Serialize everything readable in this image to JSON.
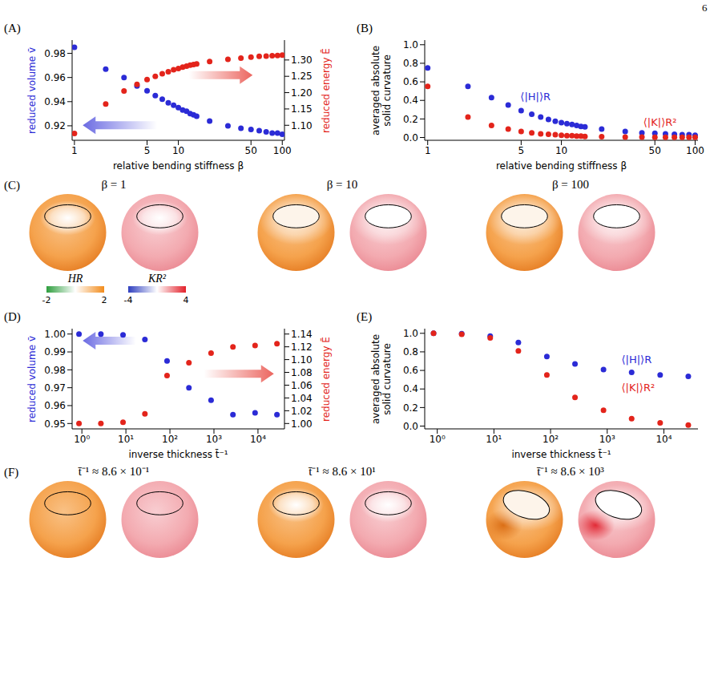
{
  "page_number": "6",
  "chart_data": [
    {
      "panel": "(A)",
      "type": "scatter",
      "marker": "circle",
      "grid": false,
      "log": "x",
      "x_label": "relative bending stiffness β",
      "y_label": "reduced volume v̄",
      "y2_label": "reduced energy Ē",
      "x": [
        1,
        2,
        3,
        4,
        5,
        6,
        7,
        8,
        9,
        10,
        11,
        12,
        13,
        14,
        15,
        20,
        30,
        40,
        50,
        60,
        70,
        80,
        90,
        100
      ],
      "xlim": [
        0.95,
        105
      ],
      "xticks": [
        1,
        5,
        10,
        50,
        100
      ],
      "ylim": [
        0.908,
        0.991
      ],
      "yticks": [
        0.92,
        0.94,
        0.96,
        0.98
      ],
      "y2lim": [
        1.054,
        1.361
      ],
      "y2ticks": [
        {
          "value": 1.1,
          "label": "1.10"
        },
        1.15,
        {
          "value": 1.2,
          "label": "1.20"
        },
        1.25,
        {
          "value": 1.3,
          "label": "1.30"
        }
      ],
      "series": [
        {
          "color": "#2b2bd6",
          "values": [
            0.985,
            0.967,
            0.96,
            0.953,
            0.949,
            0.945,
            0.942,
            0.939,
            0.937,
            0.935,
            0.933,
            0.932,
            0.93,
            0.929,
            0.928,
            0.924,
            0.92,
            0.918,
            0.917,
            0.916,
            0.915,
            0.914,
            0.914,
            0.913
          ]
        },
        {
          "color": "#e3241b",
          "axis": "y2",
          "values": [
            1.075,
            1.165,
            1.205,
            1.225,
            1.24,
            1.25,
            1.258,
            1.264,
            1.27,
            1.274,
            1.278,
            1.281,
            1.284,
            1.286,
            1.288,
            1.295,
            1.302,
            1.306,
            1.309,
            1.311,
            1.312,
            1.313,
            1.314,
            1.315
          ]
        }
      ]
    },
    {
      "panel": "(B)",
      "type": "scatter",
      "marker": "circle",
      "grid": false,
      "log": "x",
      "x_label": "relative bending stiffness β",
      "y_label": "averaged absolute solid curvature",
      "x": [
        1,
        2,
        3,
        4,
        5,
        6,
        7,
        8,
        9,
        10,
        11,
        12,
        13,
        14,
        15,
        20,
        30,
        40,
        50,
        60,
        70,
        80,
        90,
        100
      ],
      "xlim": [
        0.95,
        105
      ],
      "xticks": [
        1,
        5,
        10,
        50,
        100
      ],
      "ylim": [
        -0.03,
        1.05
      ],
      "yticks": [
        {
          "value": 0,
          "label": "0.0"
        },
        0.2,
        0.4,
        0.6,
        0.8,
        {
          "value": 1,
          "label": "1.0"
        }
      ],
      "series": [
        {
          "name": "⟨|H|⟩R",
          "color": "#2b2bd6",
          "values": [
            0.75,
            0.55,
            0.43,
            0.35,
            0.29,
            0.25,
            0.22,
            0.195,
            0.175,
            0.16,
            0.15,
            0.14,
            0.13,
            0.12,
            0.115,
            0.09,
            0.065,
            0.05,
            0.045,
            0.04,
            0.035,
            0.03,
            0.03,
            0.025
          ]
        },
        {
          "name": "⟨|K|⟩R²",
          "color": "#e3241b",
          "values": [
            0.55,
            0.22,
            0.13,
            0.09,
            0.065,
            0.05,
            0.04,
            0.035,
            0.03,
            0.025,
            0.02,
            0.02,
            0.015,
            0.015,
            0.012,
            0.008,
            0.005,
            0.004,
            0.003,
            0.003,
            0.002,
            0.002,
            0.002,
            0.002
          ]
        }
      ]
    },
    {
      "panel": "(D)",
      "type": "scatter",
      "marker": "circle",
      "grid": false,
      "log": "x",
      "x_label": "inverse thickness t̄⁻¹",
      "y_label": "reduced volume v̄",
      "y2_label": "reduced energy Ē",
      "x": [
        0.86,
        2.7,
        8.6,
        27,
        86,
        270,
        860,
        2700,
        8600,
        27000
      ],
      "xlim": [
        0.6,
        40000
      ],
      "xticks": [
        {
          "value": 1,
          "label": "10⁰"
        },
        {
          "value": 10,
          "label": "10¹"
        },
        {
          "value": 100,
          "label": "10²"
        },
        {
          "value": 1000,
          "label": "10³"
        },
        {
          "value": 10000,
          "label": "10⁴"
        }
      ],
      "ylim": [
        0.947,
        1.003
      ],
      "yticks": [
        0.95,
        0.96,
        0.97,
        0.98,
        0.99,
        {
          "value": 1,
          "label": "1.00"
        }
      ],
      "y2lim": [
        0.9916,
        1.1484
      ],
      "y2ticks": [
        {
          "value": 1,
          "label": "1.00"
        },
        1.02,
        1.04,
        1.06,
        1.08,
        {
          "value": 1.1,
          "label": "1.10"
        },
        1.12,
        1.14
      ],
      "series": [
        {
          "color": "#2b2bd6",
          "values": [
            1.0,
            1.0,
            0.9995,
            0.997,
            0.985,
            0.97,
            0.963,
            0.955,
            0.956,
            0.955
          ]
        },
        {
          "color": "#e3241b",
          "axis": "y2",
          "values": [
            1.0,
            1.0,
            1.002,
            1.015,
            1.075,
            1.095,
            1.11,
            1.12,
            1.122,
            1.125
          ]
        }
      ]
    },
    {
      "panel": "(E)",
      "type": "scatter",
      "marker": "circle",
      "grid": false,
      "log": "x",
      "x_label": "inverse thickness t̄⁻¹",
      "y_label": "averaged absolute solid curvature",
      "x": [
        0.86,
        2.7,
        8.6,
        27,
        86,
        270,
        860,
        2700,
        8600,
        27000
      ],
      "xlim": [
        0.6,
        40000
      ],
      "xticks": [
        {
          "value": 1,
          "label": "10⁰"
        },
        {
          "value": 10,
          "label": "10¹"
        },
        {
          "value": 100,
          "label": "10²"
        },
        {
          "value": 1000,
          "label": "10³"
        },
        {
          "value": 10000,
          "label": "10⁴"
        }
      ],
      "ylim": [
        -0.03,
        1.05
      ],
      "yticks": [
        {
          "value": 0,
          "label": "0.0"
        },
        0.2,
        0.4,
        0.6,
        0.8,
        {
          "value": 1,
          "label": "1.0"
        }
      ],
      "series": [
        {
          "name": "⟨|H|⟩R",
          "color": "#2b2bd6",
          "values": [
            1.0,
            0.995,
            0.97,
            0.9,
            0.75,
            0.67,
            0.61,
            0.58,
            0.55,
            0.535
          ]
        },
        {
          "name": "⟨|K|⟩R²",
          "color": "#e3241b",
          "values": [
            1.0,
            0.99,
            0.95,
            0.81,
            0.55,
            0.31,
            0.17,
            0.08,
            0.035,
            0.012
          ]
        }
      ]
    }
  ],
  "renders": [
    {
      "panel": "(C)",
      "titles": [
        "β = 1",
        "β = 10",
        "β = 100"
      ],
      "colorbars": [
        {
          "label": "HR",
          "range": [
            -2,
            2
          ],
          "ticks": [
            -2,
            2
          ]
        },
        {
          "label": "KR²",
          "range": [
            -4,
            4
          ],
          "ticks": [
            -4,
            4
          ]
        }
      ]
    },
    {
      "panel": "(F)",
      "titles": [
        "t̄⁻¹ ≈ 8.6 × 10⁻¹",
        "t̄⁻¹ ≈ 8.6 × 10¹",
        "t̄⁻¹ ≈ 8.6 × 10³"
      ]
    }
  ]
}
